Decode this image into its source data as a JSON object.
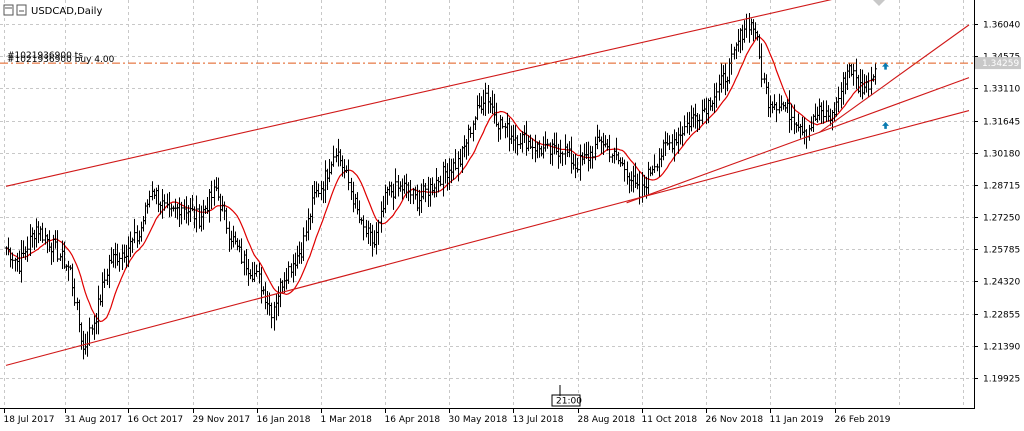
{
  "window": {
    "title": "USDCAD,Daily",
    "order_label": "#1021936900 buy 4.00",
    "order_label_overlap": "#1021936900 ts",
    "price_badge": "1.34259",
    "time_badge": "21:00"
  },
  "colors": {
    "bars": "#000000",
    "moving_average": "#e00000",
    "trendlines": "#d01818",
    "order_line": "#e05a1a",
    "arrow": "#0a7ab0",
    "grid": "#c8c8c8",
    "badge_bg": "#c8c8c8",
    "badge_text": "#ffffff"
  },
  "icons": {
    "window_icon": "chart-window-icon",
    "buy_arrow": "arrow-up-icon"
  },
  "chart_data": {
    "type": "ohlc",
    "symbol": "USDCAD",
    "timeframe": "Daily",
    "y_ticks": [
      "1.36040",
      "1.34575",
      "1.33110",
      "1.31645",
      "1.30180",
      "1.28715",
      "1.27250",
      "1.25785",
      "1.24320",
      "1.22855",
      "1.21390",
      "1.19925"
    ],
    "y_min": 1.1925,
    "y_max": 1.3665,
    "x_ticks": [
      "18 Jul 2017",
      "31 Aug 2017",
      "16 Oct 2017",
      "29 Nov 2017",
      "16 Jan 2018",
      "1 Mar 2018",
      "16 Apr 2018",
      "30 May 2018",
      "13 Jul 2018",
      "28 Aug 2018",
      "11 Oct 2018",
      "26 Nov 2018",
      "11 Jan 2019",
      "26 Feb 2019"
    ],
    "grid": true,
    "order_price": 1.3426,
    "close_key_points": [
      {
        "i": 0,
        "v": 1.2585
      },
      {
        "i": 6,
        "v": 1.251
      },
      {
        "i": 14,
        "v": 1.268
      },
      {
        "i": 22,
        "v": 1.259
      },
      {
        "i": 30,
        "v": 1.248
      },
      {
        "i": 36,
        "v": 1.212
      },
      {
        "i": 42,
        "v": 1.228
      },
      {
        "i": 48,
        "v": 1.252
      },
      {
        "i": 56,
        "v": 1.258
      },
      {
        "i": 62,
        "v": 1.264
      },
      {
        "i": 68,
        "v": 1.286
      },
      {
        "i": 76,
        "v": 1.273
      },
      {
        "i": 82,
        "v": 1.278
      },
      {
        "i": 90,
        "v": 1.272
      },
      {
        "i": 98,
        "v": 1.285
      },
      {
        "i": 104,
        "v": 1.266
      },
      {
        "i": 110,
        "v": 1.254
      },
      {
        "i": 118,
        "v": 1.244
      },
      {
        "i": 124,
        "v": 1.23
      },
      {
        "i": 130,
        "v": 1.246
      },
      {
        "i": 138,
        "v": 1.258
      },
      {
        "i": 144,
        "v": 1.282
      },
      {
        "i": 148,
        "v": 1.288
      },
      {
        "i": 154,
        "v": 1.304
      },
      {
        "i": 160,
        "v": 1.288
      },
      {
        "i": 166,
        "v": 1.268
      },
      {
        "i": 172,
        "v": 1.26
      },
      {
        "i": 178,
        "v": 1.284
      },
      {
        "i": 186,
        "v": 1.286
      },
      {
        "i": 192,
        "v": 1.28
      },
      {
        "i": 200,
        "v": 1.288
      },
      {
        "i": 206,
        "v": 1.294
      },
      {
        "i": 212,
        "v": 1.298
      },
      {
        "i": 218,
        "v": 1.316
      },
      {
        "i": 224,
        "v": 1.329
      },
      {
        "i": 230,
        "v": 1.316
      },
      {
        "i": 236,
        "v": 1.31
      },
      {
        "i": 242,
        "v": 1.308
      },
      {
        "i": 248,
        "v": 1.304
      },
      {
        "i": 254,
        "v": 1.302
      },
      {
        "i": 260,
        "v": 1.304
      },
      {
        "i": 266,
        "v": 1.296
      },
      {
        "i": 272,
        "v": 1.3
      },
      {
        "i": 278,
        "v": 1.308
      },
      {
        "i": 284,
        "v": 1.3
      },
      {
        "i": 290,
        "v": 1.294
      },
      {
        "i": 296,
        "v": 1.282
      },
      {
        "i": 302,
        "v": 1.296
      },
      {
        "i": 308,
        "v": 1.304
      },
      {
        "i": 314,
        "v": 1.31
      },
      {
        "i": 320,
        "v": 1.317
      },
      {
        "i": 326,
        "v": 1.322
      },
      {
        "i": 332,
        "v": 1.33
      },
      {
        "i": 338,
        "v": 1.34
      },
      {
        "i": 342,
        "v": 1.352
      },
      {
        "i": 346,
        "v": 1.362
      },
      {
        "i": 350,
        "v": 1.358
      },
      {
        "i": 353,
        "v": 1.338
      },
      {
        "i": 356,
        "v": 1.326
      },
      {
        "i": 362,
        "v": 1.324
      },
      {
        "i": 368,
        "v": 1.318
      },
      {
        "i": 374,
        "v": 1.312
      },
      {
        "i": 380,
        "v": 1.32
      },
      {
        "i": 386,
        "v": 1.318
      },
      {
        "i": 390,
        "v": 1.33
      },
      {
        "i": 394,
        "v": 1.342
      },
      {
        "i": 398,
        "v": 1.332
      },
      {
        "i": 402,
        "v": 1.332
      },
      {
        "i": 406,
        "v": 1.34
      }
    ],
    "trendlines": [
      {
        "name": "channel-top",
        "p1": {
          "i": 0,
          "v": 1.2865
        },
        "p2": {
          "i": 406,
          "v": 1.376
        }
      },
      {
        "name": "channel-bottom",
        "p1": {
          "i": 0,
          "v": 1.205
        },
        "p2": {
          "i": 450,
          "v": 1.321
        }
      },
      {
        "name": "support-a",
        "p1": {
          "i": 290,
          "v": 1.279
        },
        "p2": {
          "i": 450,
          "v": 1.336
        }
      },
      {
        "name": "support-b",
        "p1": {
          "i": 380,
          "v": 1.311
        },
        "p2": {
          "i": 450,
          "v": 1.36
        }
      }
    ],
    "buy_arrow_points": [
      {
        "i": 411,
        "v": 1.341
      },
      {
        "i": 411,
        "v": 1.314
      }
    ]
  }
}
